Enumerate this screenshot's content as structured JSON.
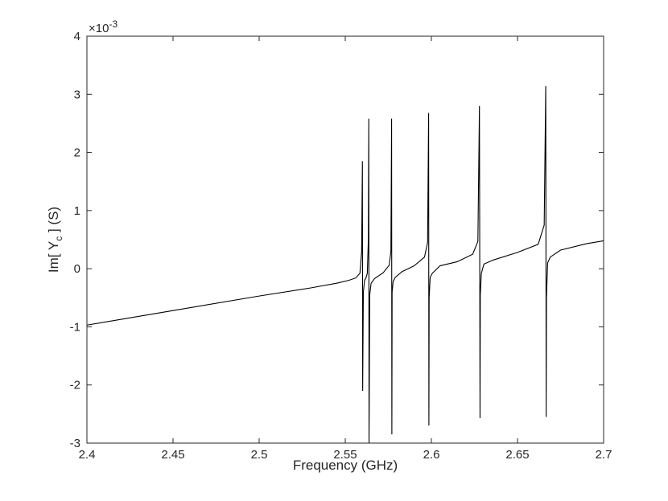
{
  "chart_data": {
    "type": "line",
    "title": "",
    "xlabel": "Frequency (GHz)",
    "ylabel_prefix": "Im[ Y",
    "ylabel_sub": "c",
    "ylabel_suffix": " ] (S)",
    "y_scale_base": "×10",
    "y_scale_exp": "-3",
    "xlim": [
      2.4,
      2.7
    ],
    "ylim": [
      -3,
      4
    ],
    "xticks": [
      2.4,
      2.45,
      2.5,
      2.55,
      2.6,
      2.65,
      2.7
    ],
    "xtick_labels": [
      "2.4",
      "2.45",
      "2.5",
      "2.55",
      "2.6",
      "2.65",
      "2.7"
    ],
    "yticks": [
      -3,
      -2,
      -1,
      0,
      1,
      2,
      3,
      4
    ],
    "ytick_labels": [
      "-3",
      "-2",
      "-1",
      "0",
      "1",
      "2",
      "3",
      "4"
    ],
    "grid": false,
    "line_color": "#000000",
    "series": [
      {
        "x": [
          2.4,
          2.45,
          2.5,
          2.53,
          2.545,
          2.552,
          2.556,
          2.5585,
          2.5595,
          2.55995,
          2.5601,
          2.5605,
          2.5612,
          2.562,
          2.5628,
          2.5634,
          2.56365,
          2.5638,
          2.5642,
          2.565,
          2.567,
          2.572,
          2.5755,
          2.5765,
          2.5769,
          2.57705,
          2.5772,
          2.5778,
          2.579,
          2.583,
          2.59,
          2.596,
          2.5978,
          2.5984,
          2.59855,
          2.5987,
          2.5993,
          2.6005,
          2.605,
          2.615,
          2.624,
          2.627,
          2.6279,
          2.62825,
          2.6284,
          2.629,
          2.6305,
          2.636,
          2.65,
          2.662,
          2.6655,
          2.6664,
          2.66665,
          2.6668,
          2.6675,
          2.669,
          2.675,
          2.69,
          2.7
        ],
        "y": [
          -0.97,
          -0.72,
          -0.47,
          -0.33,
          -0.25,
          -0.2,
          -0.16,
          -0.08,
          0.3,
          1.85,
          -2.1,
          -0.4,
          -0.2,
          -0.16,
          -0.08,
          0.5,
          2.58,
          -3.0,
          -0.45,
          -0.25,
          -0.17,
          -0.07,
          0.06,
          0.3,
          2.58,
          -2.85,
          -0.4,
          -0.22,
          -0.15,
          -0.05,
          0.05,
          0.2,
          0.45,
          2.68,
          -2.7,
          -0.5,
          -0.15,
          -0.08,
          0.05,
          0.12,
          0.25,
          0.47,
          2.8,
          -2.57,
          -0.45,
          -0.08,
          0.08,
          0.15,
          0.28,
          0.42,
          0.75,
          3.14,
          -2.55,
          -0.5,
          0.1,
          0.2,
          0.32,
          0.43,
          0.48
        ]
      }
    ]
  }
}
